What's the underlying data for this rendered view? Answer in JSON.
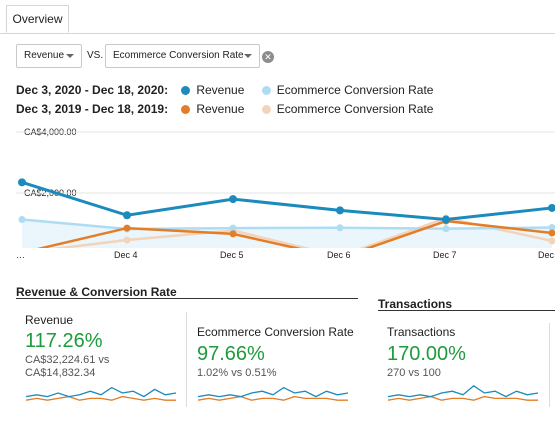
{
  "tabs": {
    "overview": "Overview"
  },
  "compare": {
    "metric1": "Revenue",
    "vs": "VS.",
    "metric2": "Ecommerce Conversion Rate",
    "clear_icon": "close-circle-icon"
  },
  "legend": {
    "row1": {
      "range": "Dec 3, 2020 - Dec 18, 2020:",
      "a": "Revenue",
      "b": "Ecommerce Conversion Rate"
    },
    "row2": {
      "range": "Dec 3, 2019 - Dec 18, 2019:",
      "a": "Revenue",
      "b": "Ecommerce Conversion Rate"
    }
  },
  "colors": {
    "revenue_current": "#1b8abc",
    "conv_current": "#aedcf3",
    "revenue_prev": "#e37d27",
    "conv_prev": "#f3d3b9"
  },
  "chart_data": {
    "type": "line",
    "categories": [
      "…",
      "Dec 4",
      "Dec 5",
      "Dec 6",
      "Dec 7",
      "Dec"
    ],
    "y_ticks": [
      "CA$4,000.00",
      "CA$2,000.00"
    ],
    "ylim": [
      0,
      4000
    ],
    "grid": true,
    "series": [
      {
        "name": "Revenue",
        "period": "Dec 3, 2020 - Dec 18, 2020",
        "values": [
          2350,
          1270,
          1800,
          1430,
          1130,
          1510
        ]
      },
      {
        "name": "Ecommerce Conversion Rate",
        "period": "Dec 3, 2020 - Dec 18, 2020",
        "values": [
          1130,
          820,
          850,
          860,
          830,
          870
        ]
      },
      {
        "name": "Revenue",
        "period": "Dec 3, 2019 - Dec 18, 2019",
        "values": [
          40,
          850,
          660,
          -130,
          1080,
          690
        ]
      },
      {
        "name": "Ecommerce Conversion Rate",
        "period": "Dec 3, 2019 - Dec 18, 2019",
        "values": [
          40,
          460,
          770,
          -80,
          1180,
          430
        ]
      }
    ]
  },
  "section1": {
    "title": "Revenue & Conversion Rate",
    "card1": {
      "label": "Revenue",
      "value": "117.26%",
      "sub1": "CA$32,224.61 vs",
      "sub2": "CA$14,832.34"
    },
    "card2": {
      "label": "Ecommerce Conversion Rate",
      "value": "97.66%",
      "sub1": "1.02% vs 0.51%"
    }
  },
  "section2": {
    "title": "Transactions",
    "card1": {
      "label": "Transactions",
      "value": "170.00%",
      "sub1": "270 vs 100"
    }
  },
  "sparklines": {
    "revenue": {
      "current": [
        3,
        4,
        3,
        5,
        3,
        4,
        6,
        4,
        8,
        5,
        6,
        3,
        7,
        4,
        5
      ],
      "previous": [
        1,
        2,
        1,
        2,
        3,
        1,
        2,
        2,
        1,
        3,
        2,
        1,
        2,
        1,
        1
      ]
    },
    "conversion": {
      "current": [
        3,
        4,
        3,
        4,
        3,
        5,
        6,
        4,
        8,
        5,
        6,
        3,
        6,
        4,
        5
      ],
      "previous": [
        1,
        2,
        1,
        2,
        3,
        1,
        2,
        2,
        1,
        3,
        2,
        2,
        2,
        1,
        1
      ]
    },
    "transactions": {
      "current": [
        3,
        4,
        3,
        4,
        3,
        5,
        6,
        4,
        9,
        5,
        6,
        3,
        6,
        4,
        5
      ],
      "previous": [
        1,
        2,
        1,
        2,
        3,
        1,
        2,
        2,
        1,
        3,
        2,
        2,
        2,
        1,
        1
      ]
    }
  }
}
